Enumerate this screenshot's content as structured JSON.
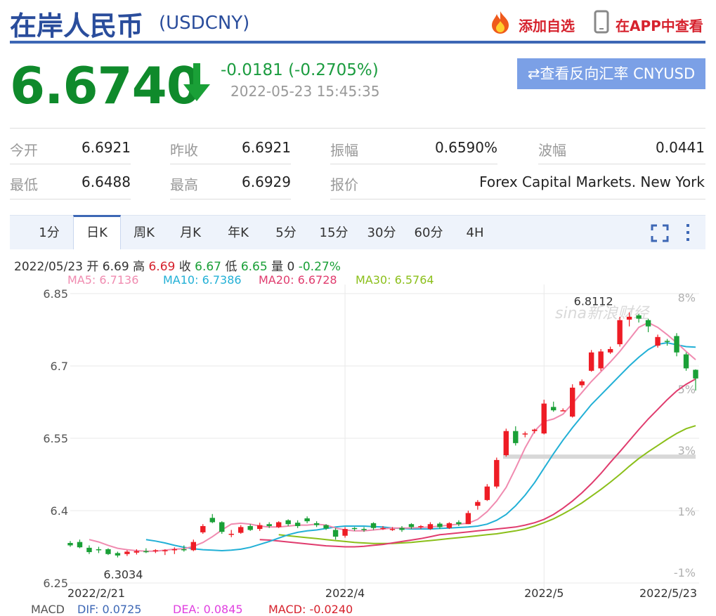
{
  "header": {
    "title": "在岸人民币",
    "code": "(USDCNY)",
    "add_watch": "添加自选",
    "app_view": "在APP中查看"
  },
  "quote": {
    "price": "6.6740",
    "change": "-0.0181 (-0.2705%)",
    "time": "2022-05-23 15:45:35",
    "reverse_button": "⇄查看反向汇率 CNYUSD"
  },
  "stats": [
    {
      "label": "今开",
      "value": "6.6921"
    },
    {
      "label": "昨收",
      "value": "6.6921"
    },
    {
      "label": "振幅",
      "value": "0.6590%"
    },
    {
      "label": "波幅",
      "value": "0.0441"
    },
    {
      "label": "最低",
      "value": "6.6488"
    },
    {
      "label": "最高",
      "value": "6.6929"
    },
    {
      "label": "报价",
      "value": "Forex Capital Markets. New York"
    }
  ],
  "tabs": [
    "1分",
    "日K",
    "周K",
    "月K",
    "年K",
    "5分",
    "15分",
    "30分",
    "60分",
    "4H"
  ],
  "active_tab": "日K",
  "ohlc_line": {
    "date": "2022/05/23",
    "open_label": "开",
    "open": "6.69",
    "high_label": "高",
    "high": "6.69",
    "close_label": "收",
    "close": "6.67",
    "low_label": "低",
    "low": "6.65",
    "vol_label": "量",
    "vol": "0",
    "pct": "-0.27%"
  },
  "ma_legend": [
    {
      "text": "MA5: 6.7136",
      "color": "#f08bb0"
    },
    {
      "text": "MA10: 6.7386",
      "color": "#22b0d6"
    },
    {
      "text": "MA20: 6.6728",
      "color": "#e03c6e"
    },
    {
      "text": "MA30: 6.5764",
      "color": "#8bbf1a"
    }
  ],
  "macd_legend": [
    {
      "text": "MACD",
      "color": "#555"
    },
    {
      "text": "DIF: 0.0725",
      "color": "#3d67b5"
    },
    {
      "text": "DEA: 0.0845",
      "color": "#e040e0"
    },
    {
      "text": "MACD: -0.0240",
      "color": "#d6222d"
    }
  ],
  "chart_data": {
    "type": "candlestick",
    "y_ticks": [
      "6.85",
      "6.7",
      "6.55",
      "6.4",
      "6.25"
    ],
    "y_values": [
      6.85,
      6.7,
      6.55,
      6.4,
      6.25
    ],
    "pct_ticks": [
      "8%",
      "5%",
      "3%",
      "1%",
      "-1%"
    ],
    "pct_values": [
      8,
      5,
      3,
      1,
      -1
    ],
    "x_labels": [
      {
        "text": "2022/2/21",
        "index": 0
      },
      {
        "text": "2022/4",
        "index": 29
      },
      {
        "text": "2022/5",
        "index": 50
      },
      {
        "text": "2022/5/23",
        "index": 64
      }
    ],
    "annotations": [
      {
        "text": "6.8112",
        "index": 57,
        "value": 6.8112
      },
      {
        "text": "6.3034",
        "index": 5,
        "value": 6.3034
      }
    ],
    "watermark": "sina新浪财经",
    "up_color": "#ee1c25",
    "down_color": "#1aa037",
    "candles": [
      [
        6.333,
        6.337,
        6.325,
        6.328
      ],
      [
        6.335,
        6.34,
        6.322,
        6.324
      ],
      [
        6.323,
        6.328,
        6.31,
        6.314
      ],
      [
        6.32,
        6.325,
        6.312,
        6.318
      ],
      [
        6.32,
        6.322,
        6.308,
        6.31
      ],
      [
        6.312,
        6.315,
        6.303,
        6.307
      ],
      [
        6.31,
        6.318,
        6.306,
        6.315
      ],
      [
        6.313,
        6.32,
        6.309,
        6.316
      ],
      [
        6.316,
        6.322,
        6.312,
        6.315
      ],
      [
        6.318,
        6.32,
        6.312,
        6.318
      ],
      [
        6.316,
        6.32,
        6.308,
        6.318
      ],
      [
        6.318,
        6.324,
        6.31,
        6.32
      ],
      [
        6.32,
        6.328,
        6.315,
        6.318
      ],
      [
        6.318,
        6.34,
        6.316,
        6.335
      ],
      [
        6.355,
        6.372,
        6.352,
        6.368
      ],
      [
        6.385,
        6.393,
        6.374,
        6.376
      ],
      [
        6.376,
        6.378,
        6.352,
        6.356
      ],
      [
        6.35,
        6.36,
        6.345,
        6.352
      ],
      [
        6.354,
        6.37,
        6.352,
        6.366
      ],
      [
        6.368,
        6.372,
        6.358,
        6.36
      ],
      [
        6.362,
        6.375,
        6.358,
        6.37
      ],
      [
        6.372,
        6.376,
        6.364,
        6.368
      ],
      [
        6.366,
        6.378,
        6.364,
        6.376
      ],
      [
        6.38,
        6.382,
        6.368,
        6.372
      ],
      [
        6.375,
        6.38,
        6.364,
        6.368
      ],
      [
        6.384,
        6.388,
        6.374,
        6.378
      ],
      [
        6.374,
        6.378,
        6.366,
        6.37
      ],
      [
        6.37,
        6.372,
        6.36,
        6.363
      ],
      [
        6.36,
        6.364,
        6.34,
        6.346
      ],
      [
        6.348,
        6.366,
        6.344,
        6.362
      ],
      [
        6.364,
        6.366,
        6.358,
        6.362
      ],
      [
        6.362,
        6.366,
        6.356,
        6.36
      ],
      [
        6.374,
        6.376,
        6.36,
        6.364
      ],
      [
        6.364,
        6.368,
        6.36,
        6.364
      ],
      [
        6.362,
        6.366,
        6.358,
        6.362
      ],
      [
        6.364,
        6.368,
        6.356,
        6.36
      ],
      [
        6.372,
        6.374,
        6.362,
        6.366
      ],
      [
        6.366,
        6.37,
        6.362,
        6.368
      ],
      [
        6.362,
        6.376,
        6.36,
        6.372
      ],
      [
        6.373,
        6.376,
        6.362,
        6.366
      ],
      [
        6.364,
        6.376,
        6.362,
        6.374
      ],
      [
        6.376,
        6.38,
        6.368,
        6.372
      ],
      [
        6.372,
        6.4,
        6.372,
        6.395
      ],
      [
        6.41,
        6.422,
        6.402,
        6.418
      ],
      [
        6.422,
        6.455,
        6.42,
        6.45
      ],
      [
        6.45,
        6.51,
        6.446,
        6.505
      ],
      [
        6.515,
        6.57,
        6.512,
        6.565
      ],
      [
        6.565,
        6.575,
        6.535,
        6.54
      ],
      [
        6.56,
        6.564,
        6.552,
        6.56
      ],
      [
        6.565,
        6.57,
        6.56,
        6.568
      ],
      [
        6.56,
        6.63,
        6.558,
        6.622
      ],
      [
        6.615,
        6.626,
        6.605,
        6.608
      ],
      [
        6.608,
        6.612,
        6.607,
        6.608
      ],
      [
        6.595,
        6.662,
        6.593,
        6.655
      ],
      [
        6.66,
        6.672,
        6.655,
        6.668
      ],
      [
        6.69,
        6.733,
        6.688,
        6.728
      ],
      [
        6.695,
        6.735,
        6.69,
        6.73
      ],
      [
        6.728,
        6.74,
        6.725,
        6.735
      ],
      [
        6.745,
        6.802,
        6.74,
        6.795
      ],
      [
        6.796,
        6.811,
        6.782,
        6.802
      ],
      [
        6.805,
        6.808,
        6.79,
        6.798
      ],
      [
        6.795,
        6.798,
        6.77,
        6.782
      ],
      [
        6.742,
        6.765,
        6.738,
        6.76
      ],
      [
        6.752,
        6.756,
        6.742,
        6.75
      ],
      [
        6.762,
        6.768,
        6.72,
        6.728
      ],
      [
        6.724,
        6.728,
        6.69,
        6.695
      ],
      [
        6.692,
        6.693,
        6.649,
        6.674
      ]
    ],
    "ma5": [
      6.34,
      6.335,
      6.328,
      6.322,
      6.319,
      6.317,
      6.316,
      6.316,
      6.318,
      6.32,
      6.321,
      6.326,
      6.334,
      6.346,
      6.36,
      6.372,
      6.374,
      6.372,
      6.368,
      6.366,
      6.366,
      6.368,
      6.37,
      6.37,
      6.372,
      6.37,
      6.364,
      6.36,
      6.358,
      6.358,
      6.36,
      6.362,
      6.364,
      6.364,
      6.364,
      6.365,
      6.366,
      6.368,
      6.37,
      6.372,
      6.374,
      6.382,
      6.398,
      6.42,
      6.448,
      6.488,
      6.53,
      6.565,
      6.585,
      6.59,
      6.6,
      6.622,
      6.645,
      6.668,
      6.688,
      6.708,
      6.73,
      6.755,
      6.78,
      6.79,
      6.78,
      6.765,
      6.748,
      6.73,
      6.713
    ],
    "ma10": [
      6.34,
      6.337,
      6.333,
      6.328,
      6.324,
      6.321,
      6.319,
      6.318,
      6.317,
      6.318,
      6.32,
      6.324,
      6.33,
      6.336,
      6.343,
      6.35,
      6.355,
      6.358,
      6.36,
      6.363,
      6.366,
      6.368,
      6.368,
      6.368,
      6.367,
      6.366,
      6.364,
      6.363,
      6.362,
      6.362,
      6.362,
      6.363,
      6.364,
      6.365,
      6.366,
      6.368,
      6.372,
      6.38,
      6.392,
      6.41,
      6.432,
      6.458,
      6.488,
      6.518,
      6.546,
      6.572,
      6.596,
      6.62,
      6.64,
      6.66,
      6.68,
      6.7,
      6.718,
      6.734,
      6.745,
      6.748,
      6.744,
      6.74,
      6.739
    ],
    "ma20": [
      6.34,
      6.339,
      6.337,
      6.335,
      6.333,
      6.331,
      6.329,
      6.327,
      6.326,
      6.325,
      6.325,
      6.326,
      6.328,
      6.33,
      6.333,
      6.336,
      6.339,
      6.342,
      6.346,
      6.35,
      6.352,
      6.354,
      6.356,
      6.358,
      6.36,
      6.362,
      6.364,
      6.366,
      6.37,
      6.375,
      6.382,
      6.392,
      6.405,
      6.42,
      6.437,
      6.456,
      6.477,
      6.5,
      6.522,
      6.545,
      6.568,
      6.59,
      6.61,
      6.63,
      6.648,
      6.662,
      6.673
    ],
    "ma30": [
      6.35,
      6.348,
      6.346,
      6.344,
      6.342,
      6.34,
      6.338,
      6.336,
      6.334,
      6.333,
      6.332,
      6.332,
      6.332,
      6.333,
      6.334,
      6.336,
      6.338,
      6.34,
      6.342,
      6.344,
      6.346,
      6.348,
      6.35,
      6.352,
      6.355,
      6.358,
      6.362,
      6.368,
      6.375,
      6.383,
      6.393,
      6.404,
      6.416,
      6.43,
      6.444,
      6.459,
      6.475,
      6.492,
      6.508,
      6.522,
      6.535,
      6.548,
      6.56,
      6.57,
      6.576
    ]
  }
}
